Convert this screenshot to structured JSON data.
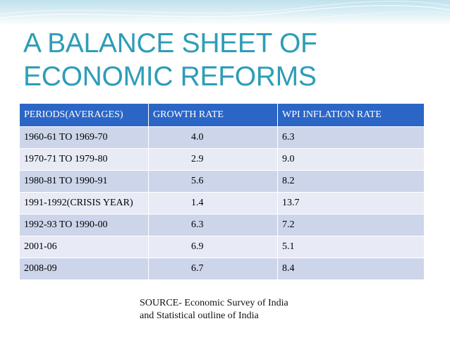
{
  "slide": {
    "title": "A BALANCE SHEET OF ECONOMIC REFORMS",
    "accent_color": "#2d9db8",
    "header_color": "#2b66c6"
  },
  "table": {
    "columns": [
      "PERIODS(AVERAGES)",
      "GROWTH RATE",
      "WPI INFLATION RATE"
    ],
    "rows": [
      [
        "1960-61 TO 1969-70",
        "4.0",
        "6.3"
      ],
      [
        "1970-71 TO 1979-80",
        "2.9",
        "9.0"
      ],
      [
        "1980-81 TO 1990-91",
        "5.6",
        "8.2"
      ],
      [
        "1991-1992(CRISIS YEAR)",
        "1.4",
        "13.7"
      ],
      [
        "1992-93 TO 1990-00",
        "6.3",
        "7.2"
      ],
      [
        "2001-06",
        "6.9",
        "5.1"
      ],
      [
        "2008-09",
        "6.7",
        "8.4"
      ]
    ]
  },
  "source": {
    "line1": "SOURCE- Economic Survey of India",
    "line2": "and Statistical outline of India"
  }
}
